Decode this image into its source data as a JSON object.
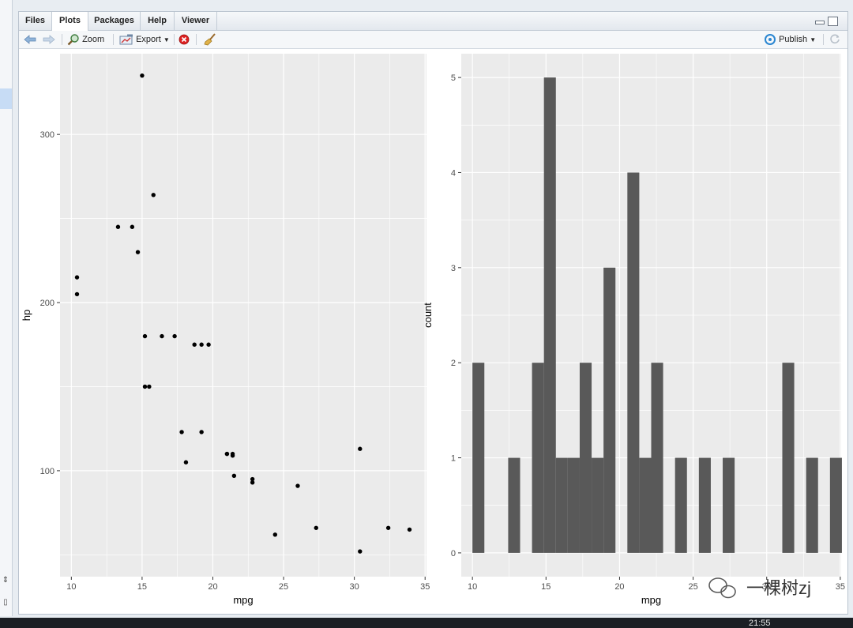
{
  "tabs": [
    "Files",
    "Plots",
    "Packages",
    "Help",
    "Viewer"
  ],
  "active_tab": "Plots",
  "toolbar": {
    "zoom_label": "Zoom",
    "export_label": "Export",
    "publish_label": "Publish"
  },
  "watermark": {
    "text": "一棵树zj"
  },
  "taskbar": {
    "clock": "21:55"
  },
  "colors": {
    "panel_bg": "#EBEBEB",
    "grid": "#FFFFFF",
    "point": "#000000",
    "bar": "#595959"
  },
  "icons": [
    "back-arrow-icon",
    "forward-arrow-icon",
    "zoom-icon",
    "export-icon",
    "remove-plot-icon",
    "broom-icon",
    "publish-icon",
    "refresh-icon"
  ],
  "chart_data": [
    {
      "type": "scatter",
      "xlabel": "mpg",
      "ylabel": "hp",
      "xlim": [
        9.2,
        35.1
      ],
      "ylim": [
        37,
        348
      ],
      "x_ticks": [
        10,
        15,
        20,
        25,
        30,
        35
      ],
      "y_ticks": [
        100,
        200,
        300
      ],
      "grid": true,
      "points": [
        [
          21.0,
          110
        ],
        [
          21.0,
          110
        ],
        [
          22.8,
          93
        ],
        [
          21.4,
          110
        ],
        [
          18.7,
          175
        ],
        [
          18.1,
          105
        ],
        [
          14.3,
          245
        ],
        [
          24.4,
          62
        ],
        [
          22.8,
          95
        ],
        [
          19.2,
          123
        ],
        [
          17.8,
          123
        ],
        [
          16.4,
          180
        ],
        [
          17.3,
          180
        ],
        [
          15.2,
          180
        ],
        [
          10.4,
          205
        ],
        [
          10.4,
          215
        ],
        [
          14.7,
          230
        ],
        [
          32.4,
          66
        ],
        [
          30.4,
          52
        ],
        [
          33.9,
          65
        ],
        [
          21.5,
          97
        ],
        [
          15.5,
          150
        ],
        [
          15.2,
          150
        ],
        [
          13.3,
          245
        ],
        [
          19.2,
          175
        ],
        [
          27.3,
          66
        ],
        [
          26.0,
          91
        ],
        [
          30.4,
          113
        ],
        [
          15.8,
          264
        ],
        [
          19.7,
          175
        ],
        [
          15.0,
          335
        ],
        [
          21.4,
          109
        ]
      ]
    },
    {
      "type": "bar",
      "xlabel": "mpg",
      "ylabel": "count",
      "xlim": [
        9.24,
        35.06
      ],
      "ylim": [
        -0.25,
        5.25
      ],
      "x_ticks": [
        10,
        15,
        20,
        25,
        30,
        35
      ],
      "y_ticks": [
        0,
        1,
        2,
        3,
        4,
        5
      ],
      "grid": true,
      "bin_width": 0.81,
      "bins_start": 10.0,
      "counts": [
        2,
        0,
        0,
        1,
        0,
        2,
        5,
        1,
        1,
        2,
        1,
        3,
        0,
        4,
        1,
        2,
        0,
        1,
        0,
        1,
        0,
        1,
        0,
        0,
        0,
        0,
        2,
        0,
        1,
        0,
        1
      ]
    }
  ]
}
